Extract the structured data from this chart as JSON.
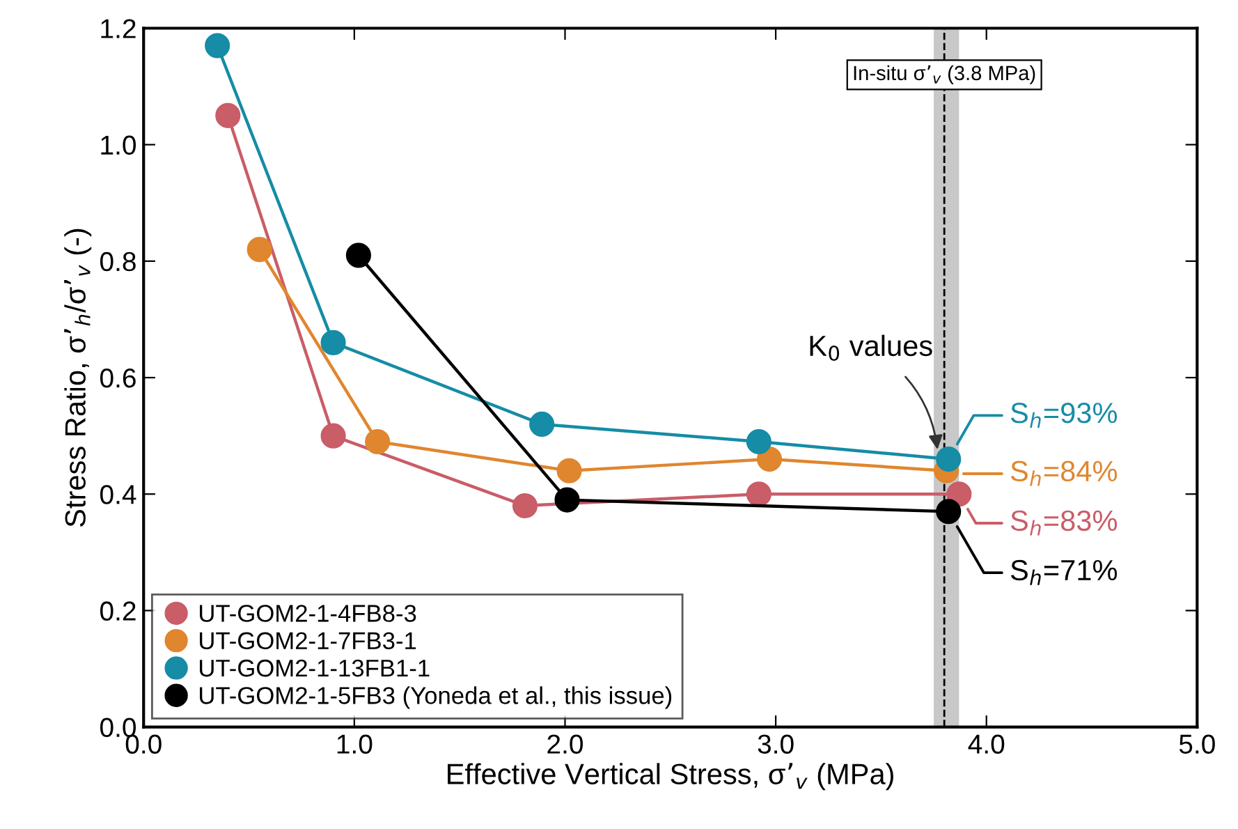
{
  "chart_data": {
    "type": "line",
    "xlabel": "Effective Vertical Stress, σ’$_{v}$ (MPa)",
    "ylabel": "Stress Ratio, σ’$_{h}$/σ’$_{v}$ (-)",
    "series": [
      {
        "name": "UT-GOM2-1-4FB8-3",
        "color": "#c95d68",
        "x": [
          0.4,
          0.9,
          1.81,
          2.92,
          3.87
        ],
        "values": [
          1.05,
          0.5,
          0.38,
          0.4,
          0.4
        ]
      },
      {
        "name": "UT-GOM2-1-7FB3-1",
        "color": "#e0862e",
        "x": [
          0.55,
          1.11,
          2.02,
          2.97,
          3.81
        ],
        "values": [
          0.82,
          0.49,
          0.44,
          0.46,
          0.44
        ]
      },
      {
        "name": "UT-GOM2-1-13FB1-1",
        "color": "#168ca6",
        "x": [
          0.35,
          0.9,
          1.89,
          2.92,
          3.82
        ],
        "values": [
          1.17,
          0.66,
          0.52,
          0.49,
          0.46
        ]
      },
      {
        "name": "UT-GOM2-1-5FB3 (Yoneda et al., this issue)",
        "color": "#000000",
        "x": [
          1.02,
          2.01,
          3.82
        ],
        "values": [
          0.81,
          0.39,
          0.37
        ]
      }
    ],
    "xlim": [
      0,
      5
    ],
    "xticks": [
      {
        "value": 0,
        "label": "0.0"
      },
      {
        "value": 1,
        "label": "1.0"
      },
      {
        "value": 2,
        "label": "2.0"
      },
      {
        "value": 3,
        "label": "3.0"
      },
      {
        "value": 4,
        "label": "4.0"
      },
      {
        "value": 5,
        "label": "5.0"
      }
    ],
    "ylim": [
      0,
      1.2
    ],
    "yticks": [
      {
        "value": 0,
        "label": "0.0"
      },
      {
        "value": 0.2,
        "label": "0.2"
      },
      {
        "value": 0.4,
        "label": "0.4"
      },
      {
        "value": 0.6,
        "label": "0.6"
      },
      {
        "value": 0.8,
        "label": "0.8"
      },
      {
        "value": 1.0,
        "label": "1.0"
      },
      {
        "value": 1.2,
        "label": "1.2"
      }
    ],
    "ref_lines": [
      {
        "axis": "x",
        "value": 3.8,
        "label": "In-situ σ’$_{v}$ (3.8 MPa)",
        "color": "#000000",
        "line_style": "dashed"
      }
    ],
    "bands": [
      {
        "axis": "x",
        "from": 3.75,
        "to": 3.87,
        "color": "#c8c8c8"
      }
    ],
    "annotations": [
      {
        "text": "S$_{h}$=83%",
        "x": 3.87,
        "y": 0.4
      },
      {
        "text": "S$_{h}$=84%",
        "x": 3.81,
        "y": 0.44
      },
      {
        "text": "S$_{h}$=93%",
        "x": 3.82,
        "y": 0.46
      },
      {
        "text": "S$_{h}$=71%",
        "x": 3.82,
        "y": 0.37
      },
      {
        "text": "K$_{0}$ values",
        "x": 3.77,
        "y": 0.47
      }
    ],
    "marker": "circle",
    "line_style": "solid",
    "grid": false,
    "legend": "bottom left"
  }
}
